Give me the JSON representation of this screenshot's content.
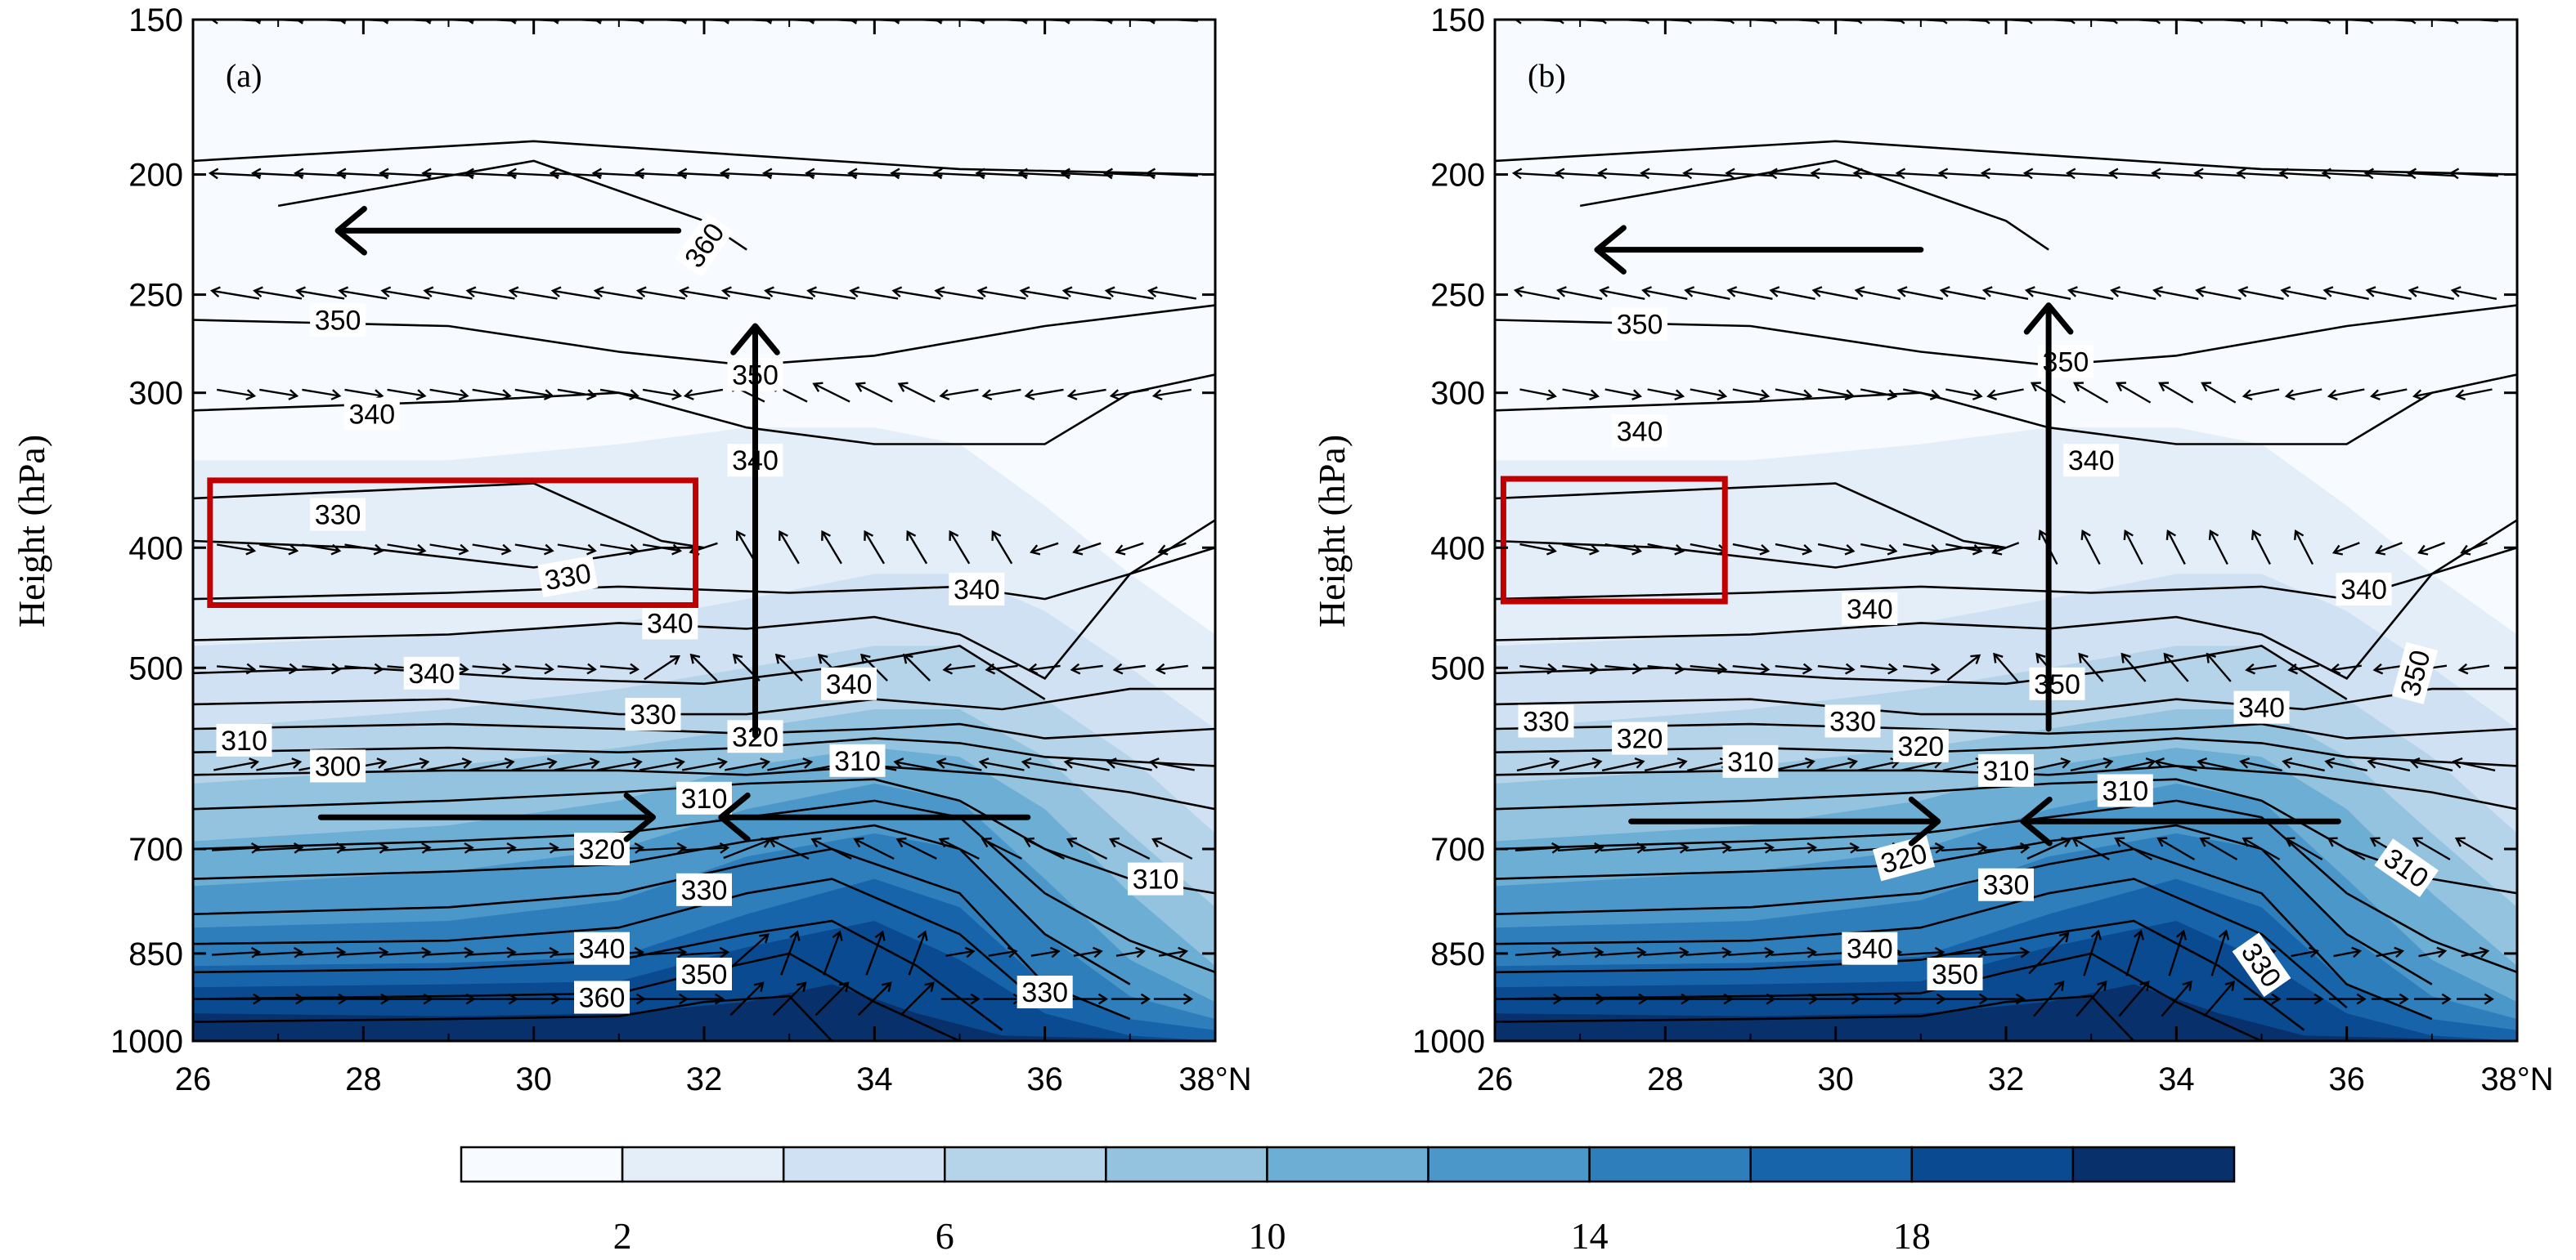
{
  "chart_data": [
    {
      "panel": "(a)",
      "type": "contour-vector-cross-section",
      "ylabel": "Height (hPa)",
      "y_ticks": [
        "150",
        "200",
        "250",
        "300",
        "400",
        "500",
        "700",
        "850",
        "1000"
      ],
      "y_tick_values": [
        150,
        200,
        250,
        300,
        400,
        500,
        700,
        850,
        1000
      ],
      "x_ticks": [
        "26",
        "28",
        "30",
        "32",
        "34",
        "36",
        "38°N"
      ],
      "x_tick_values": [
        26,
        28,
        30,
        32,
        34,
        36,
        38
      ],
      "xlim": [
        26,
        38
      ],
      "ylim": [
        1000,
        150
      ],
      "contour_labels": [
        {
          "text": "360",
          "lat": 32.0,
          "p": 228,
          "angle": -55
        },
        {
          "text": "350",
          "lat": 27.7,
          "p": 262,
          "angle": 0
        },
        {
          "text": "350",
          "lat": 32.6,
          "p": 290,
          "angle": 0
        },
        {
          "text": "340",
          "lat": 28.1,
          "p": 312,
          "angle": 0
        },
        {
          "text": "340",
          "lat": 32.6,
          "p": 340,
          "angle": 0
        },
        {
          "text": "330",
          "lat": 27.7,
          "p": 376,
          "angle": 0
        },
        {
          "text": "330",
          "lat": 30.4,
          "p": 422,
          "angle": -10
        },
        {
          "text": "340",
          "lat": 35.2,
          "p": 432,
          "angle": 0
        },
        {
          "text": "340",
          "lat": 31.6,
          "p": 460,
          "angle": 0
        },
        {
          "text": "340",
          "lat": 28.8,
          "p": 505,
          "angle": 0
        },
        {
          "text": "340",
          "lat": 33.7,
          "p": 515,
          "angle": 0
        },
        {
          "text": "330",
          "lat": 31.4,
          "p": 545,
          "angle": 0
        },
        {
          "text": "320",
          "lat": 32.6,
          "p": 568,
          "angle": 0
        },
        {
          "text": "310",
          "lat": 26.6,
          "p": 572,
          "angle": 0
        },
        {
          "text": "310",
          "lat": 33.8,
          "p": 594,
          "angle": 0
        },
        {
          "text": "300",
          "lat": 27.7,
          "p": 600,
          "angle": 0
        },
        {
          "text": "310",
          "lat": 32.0,
          "p": 637,
          "angle": 0
        },
        {
          "text": "320",
          "lat": 30.8,
          "p": 700,
          "angle": 0
        },
        {
          "text": "330",
          "lat": 32.0,
          "p": 755,
          "angle": 0
        },
        {
          "text": "310",
          "lat": 37.3,
          "p": 740,
          "angle": 0
        },
        {
          "text": "340",
          "lat": 30.8,
          "p": 842,
          "angle": 0
        },
        {
          "text": "350",
          "lat": 32.0,
          "p": 883,
          "angle": 0
        },
        {
          "text": "330",
          "lat": 36.0,
          "p": 913,
          "angle": 0
        },
        {
          "text": "360",
          "lat": 30.8,
          "p": 922,
          "angle": 0
        }
      ],
      "highlight_box": {
        "lat": [
          26.2,
          31.9
        ],
        "p": [
          353,
          445
        ],
        "color": "#c00000"
      },
      "circulation_arrows": [
        {
          "from_lat": 31.7,
          "from_p": 222,
          "to_lat": 27.7,
          "to_p": 222
        },
        {
          "from_lat": 32.6,
          "from_p": 567,
          "to_lat": 32.6,
          "to_p": 265
        },
        {
          "from_lat": 27.5,
          "from_p": 660,
          "to_lat": 31.4,
          "to_p": 660
        },
        {
          "from_lat": 35.8,
          "from_p": 660,
          "to_lat": 32.2,
          "to_p": 660
        }
      ]
    },
    {
      "panel": "(b)",
      "type": "contour-vector-cross-section",
      "ylabel": "Height (hPa)",
      "y_ticks": [
        "150",
        "200",
        "250",
        "300",
        "400",
        "500",
        "700",
        "850",
        "1000"
      ],
      "y_tick_values": [
        150,
        200,
        250,
        300,
        400,
        500,
        700,
        850,
        1000
      ],
      "x_ticks": [
        "26",
        "28",
        "30",
        "32",
        "34",
        "36",
        "38°N"
      ],
      "x_tick_values": [
        26,
        28,
        30,
        32,
        34,
        36,
        38
      ],
      "xlim": [
        26,
        38
      ],
      "ylim": [
        1000,
        150
      ],
      "contour_labels": [
        {
          "text": "350",
          "lat": 27.7,
          "p": 264,
          "angle": 0
        },
        {
          "text": "350",
          "lat": 32.7,
          "p": 283,
          "angle": 0
        },
        {
          "text": "340",
          "lat": 27.7,
          "p": 322,
          "angle": 0
        },
        {
          "text": "340",
          "lat": 33.0,
          "p": 340,
          "angle": 0
        },
        {
          "text": "340",
          "lat": 30.4,
          "p": 448,
          "angle": 0
        },
        {
          "text": "340",
          "lat": 36.2,
          "p": 432,
          "angle": 0
        },
        {
          "text": "350",
          "lat": 32.6,
          "p": 515,
          "angle": 0
        },
        {
          "text": "350",
          "lat": 36.8,
          "p": 505,
          "angle": -75
        },
        {
          "text": "340",
          "lat": 35.0,
          "p": 538,
          "angle": 0
        },
        {
          "text": "330",
          "lat": 26.6,
          "p": 552,
          "angle": 0
        },
        {
          "text": "330",
          "lat": 30.2,
          "p": 552,
          "angle": 0
        },
        {
          "text": "320",
          "lat": 27.7,
          "p": 570,
          "angle": 0
        },
        {
          "text": "320",
          "lat": 31.0,
          "p": 578,
          "angle": 0
        },
        {
          "text": "310",
          "lat": 29.0,
          "p": 595,
          "angle": 0
        },
        {
          "text": "310",
          "lat": 32.0,
          "p": 605,
          "angle": 0
        },
        {
          "text": "310",
          "lat": 33.4,
          "p": 628,
          "angle": 0
        },
        {
          "text": "320",
          "lat": 30.8,
          "p": 712,
          "angle": -15
        },
        {
          "text": "330",
          "lat": 32.0,
          "p": 748,
          "angle": 0
        },
        {
          "text": "310",
          "lat": 36.7,
          "p": 725,
          "angle": 35
        },
        {
          "text": "340",
          "lat": 30.4,
          "p": 842,
          "angle": 0
        },
        {
          "text": "350",
          "lat": 31.4,
          "p": 883,
          "angle": 0
        },
        {
          "text": "330",
          "lat": 35.0,
          "p": 868,
          "angle": 55
        }
      ],
      "highlight_box": {
        "lat": [
          26.1,
          28.7
        ],
        "p": [
          352,
          442
        ],
        "color": "#c00000"
      },
      "circulation_arrows": [
        {
          "from_lat": 31.0,
          "from_p": 230,
          "to_lat": 27.2,
          "to_p": 230
        },
        {
          "from_lat": 32.5,
          "from_p": 560,
          "to_lat": 32.5,
          "to_p": 255
        },
        {
          "from_lat": 27.6,
          "from_p": 665,
          "to_lat": 31.2,
          "to_p": 665
        },
        {
          "from_lat": 35.9,
          "from_p": 665,
          "to_lat": 32.2,
          "to_p": 665
        }
      ]
    }
  ],
  "colorbar": {
    "levels": [
      0,
      2,
      4,
      6,
      8,
      10,
      12,
      14,
      16,
      18,
      20,
      22
    ],
    "labels": [
      "2",
      "6",
      "10",
      "14",
      "18"
    ],
    "label_values": [
      2,
      6,
      10,
      14,
      18
    ],
    "colors": [
      "#f7fbff",
      "#e3eef9",
      "#cfe1f2",
      "#b5d4e9",
      "#93c3df",
      "#6daed5",
      "#4b97c9",
      "#2f7ebc",
      "#1864aa",
      "#0a4a90",
      "#08306b"
    ]
  }
}
